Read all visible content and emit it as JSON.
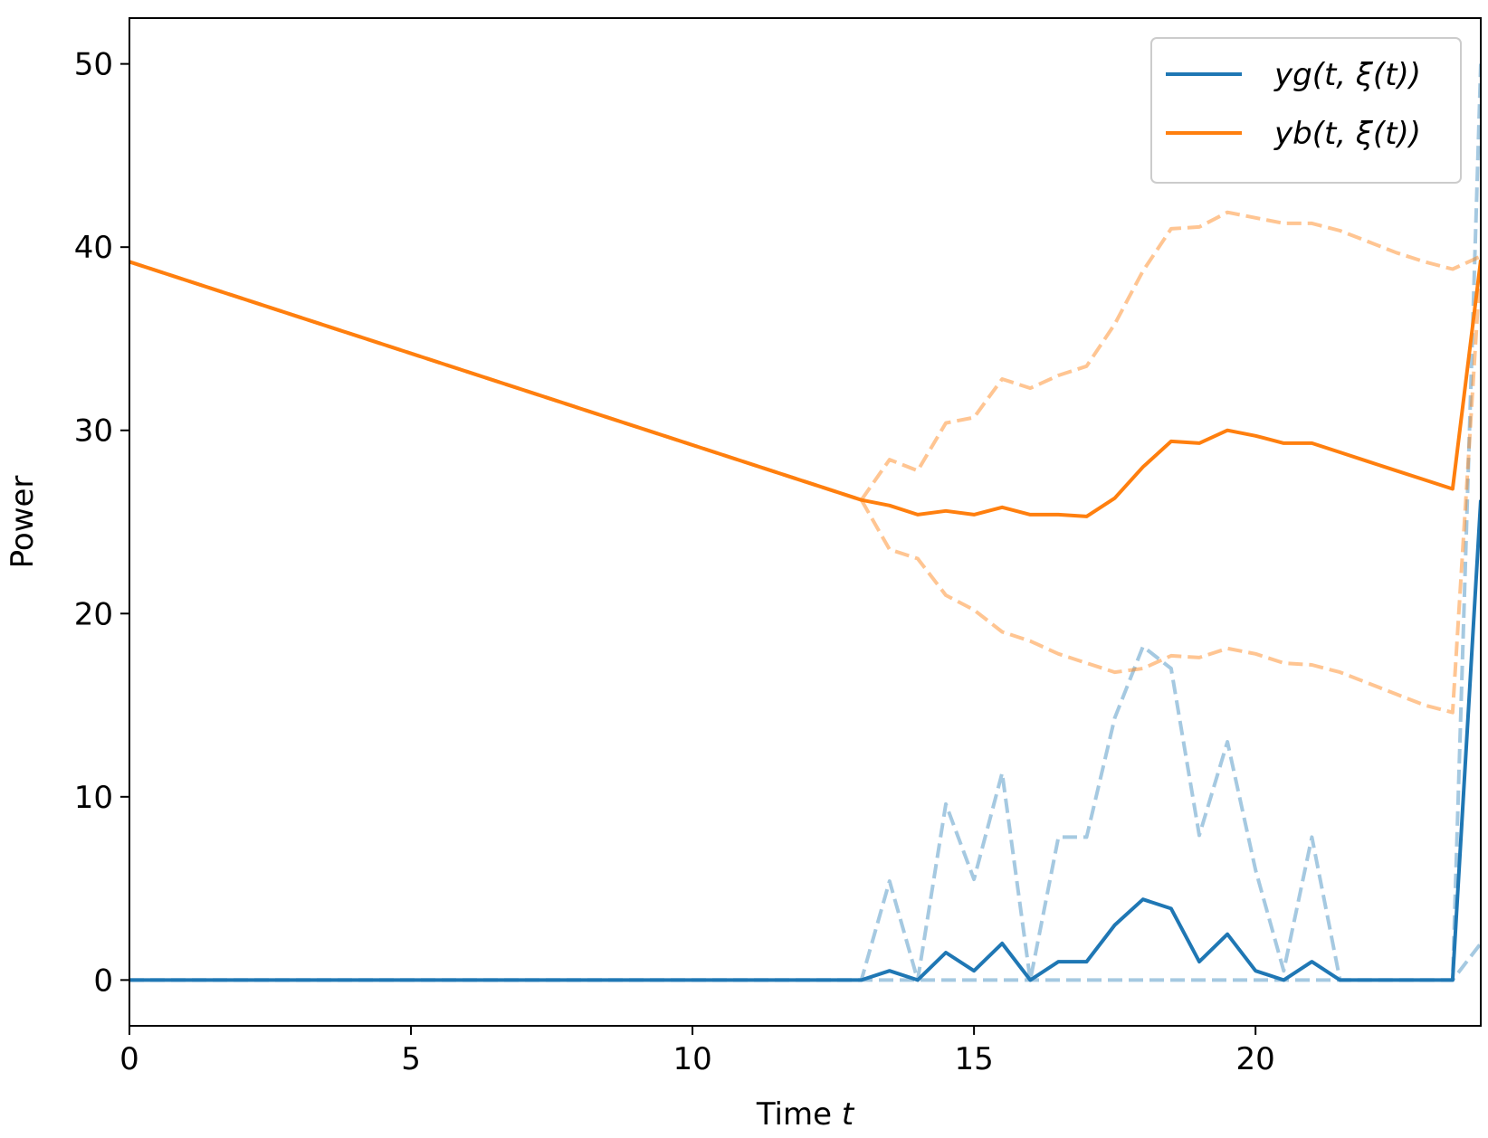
{
  "chart_data": {
    "type": "line",
    "xlabel": "Time",
    "xlabel_var": "t",
    "ylabel": "Power",
    "xlim": [
      0,
      24
    ],
    "ylim": [
      -2.5,
      52.5
    ],
    "xticks": [
      0,
      5,
      10,
      15,
      20
    ],
    "yticks": [
      0,
      10,
      20,
      30,
      40,
      50
    ],
    "grid": false,
    "legend_position": "top-right",
    "x": [
      0,
      13,
      13.5,
      14,
      14.5,
      15,
      15.5,
      16,
      16.5,
      17,
      17.5,
      18,
      18.5,
      19,
      19.5,
      20,
      20.5,
      21,
      21.5,
      22,
      22.5,
      23,
      23.5,
      24
    ],
    "series": [
      {
        "name": "yg(t, ξ(t))",
        "color": "#1f77b4",
        "style": "solid",
        "values": [
          0,
          0,
          0.5,
          0,
          1.5,
          0.5,
          2,
          0,
          1,
          1,
          3,
          4.4,
          3.9,
          1,
          2.5,
          0.5,
          0,
          1,
          0,
          0,
          0,
          0,
          0,
          26.2
        ]
      },
      {
        "name": "yb(t, ξ(t))",
        "color": "#ff7f0e",
        "style": "solid",
        "values": [
          39.2,
          26.2,
          25.9,
          25.4,
          25.6,
          25.4,
          25.8,
          25.4,
          25.4,
          25.3,
          26.3,
          28,
          29.4,
          29.3,
          30,
          29.7,
          29.3,
          29.3,
          28.8,
          28.3,
          27.8,
          27.3,
          26.8,
          39.3
        ]
      },
      {
        "name": "",
        "color": "#1f77b4",
        "style": "dashed",
        "opacity": 0.4,
        "values": [
          0,
          0,
          5.4,
          0,
          9.6,
          5.5,
          11.3,
          0,
          7.8,
          7.8,
          14.3,
          18.2,
          17,
          7.9,
          13,
          6,
          0.5,
          7.8,
          0,
          0,
          0,
          0,
          0,
          50
        ]
      },
      {
        "name": "",
        "color": "#1f77b4",
        "style": "dashed",
        "opacity": 0.4,
        "values": [
          0,
          0,
          0,
          0,
          0,
          0,
          0,
          0,
          0,
          0,
          0,
          0,
          0,
          0,
          0,
          0,
          0,
          0,
          0,
          0,
          0,
          0,
          0,
          2
        ]
      },
      {
        "name": "",
        "color": "#ff7f0e",
        "style": "dashed",
        "opacity": 0.45,
        "values": [
          39.2,
          26.2,
          28.4,
          27.8,
          30.4,
          30.7,
          32.8,
          32.3,
          33,
          33.5,
          35.8,
          38.7,
          41,
          41.1,
          41.9,
          41.6,
          41.3,
          41.3,
          40.9,
          40.3,
          39.7,
          39.2,
          38.8,
          39.5
        ]
      },
      {
        "name": "",
        "color": "#ff7f0e",
        "style": "dashed",
        "opacity": 0.45,
        "values": [
          39.2,
          26.2,
          23.5,
          23,
          21,
          20.2,
          19,
          18.5,
          17.8,
          17.3,
          16.8,
          17,
          17.7,
          17.6,
          18.1,
          17.8,
          17.3,
          17.2,
          16.8,
          16.2,
          15.6,
          15,
          14.6,
          39.3
        ]
      }
    ]
  }
}
